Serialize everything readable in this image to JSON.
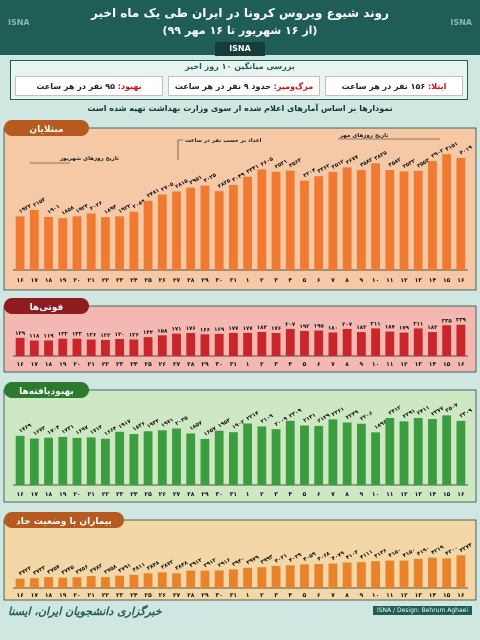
{
  "header": {
    "title": "روند شیوع ویروس کرونا در ایران طی یک ماه اخیر",
    "subtitle": "(از ۱۶ شهریور تا ۱۶ مهر ۹۹)",
    "agency": "ISNA",
    "logo_left": "ISNA",
    "logo_right": "ISNA"
  },
  "avg_box": {
    "title": "بررسی میانگین ۱۰ روز اخیر",
    "infected_label": "ابتلا:",
    "infected_value": "۱۵۶ نفر در هر ساعت",
    "deaths_label": "مرگ‌ومیر:",
    "deaths_value": "حدود ۹ نفر در هر ساعت",
    "recovered_label": "بهبود:",
    "recovered_value": "۹۵ نفر در هر ساعت"
  },
  "note": "نمودارها بر اساس آمارهای اعلام شده از سوی وزارت بهداشت تهیه شده است",
  "days": [
    "۱۶",
    "۱۷",
    "۱۸",
    "۱۹",
    "۲۰",
    "۲۱",
    "۲۲",
    "۲۳",
    "۲۴",
    "۲۵",
    "۲۶",
    "۲۷",
    "۲۸",
    "۲۹",
    "۳۰",
    "۳۱",
    "۱",
    "۲",
    "۳",
    "۴",
    "۵",
    "۶",
    "۷",
    "۸",
    "۹",
    "۱۰",
    "۱۱",
    "۱۲",
    "۱۳",
    "۱۴",
    "۱۵",
    "۱۶"
  ],
  "annotations": {
    "shahrivar_dates": "تاریخ روزهای شهریور",
    "mehr_dates": "تاریخ روزهای مهر",
    "per_hour": "اعداد بر حسب نفر در ساعت"
  },
  "footer": {
    "left": "خبرگزاری دانشجویان ایران، ایسنا",
    "right": "ISNA / Design: Behrum Aghaei"
  },
  "chart_data": [
    {
      "type": "bar",
      "title": "مبتلایان",
      "color": "#f07a32",
      "bg": "#f6c9a6",
      "values": [
        1922,
        2152,
        1901,
        1858,
        1924,
        2026,
        1894,
        1922,
        2089,
        2481,
        2705,
        2815,
        2951,
        3025,
        2825,
        3049,
        3341,
        3605,
        3521,
        3563,
        3204,
        3362,
        3512,
        3677,
        3582,
        3825,
        3582,
        3532,
        3553,
        3902,
        4151,
        4019
      ],
      "labels": [
        "۱۹۲۲",
        "۲۱۵۲",
        "۱۹۰۱",
        "۱۸۵۸",
        "۱۹۲۴",
        "۲۰۲۶",
        "۱۸۹۴",
        "۱۹۲۲",
        "۲۰۸۹",
        "۲۴۸۱",
        "۲۷۰۵",
        "۲۸۱۵",
        "۲۹۵۱",
        "۳۰۲۵",
        "۲۸۲۵",
        "۳۰۴۹",
        "۳۳۴۱",
        "۳۶۰۵",
        "۳۵۲۱",
        "۳۵۶۳",
        "۳۲۰۴",
        "۳۳۶۲",
        "۳۵۱۲",
        "۳۶۷۷",
        "۳۵۸۲",
        "۳۸۲۵",
        "۳۵۸۲",
        "۳۵۳۲",
        "۳۵۵۳",
        "۳۹۰۲",
        "۴۱۵۱",
        "۴۰۱۹"
      ],
      "ylim": [
        0,
        4300
      ]
    },
    {
      "type": "bar",
      "title": "فوتی‌ها",
      "color": "#c9252b",
      "bg": "#f2b8b1",
      "values": [
        139,
        118,
        119,
        132,
        132,
        126,
        123,
        130,
        126,
        144,
        158,
        171,
        176,
        166,
        169,
        177,
        177,
        184,
        176,
        207,
        192,
        195,
        180,
        207,
        183,
        211,
        187,
        179,
        211,
        183,
        235,
        239
      ],
      "labels": [
        "۱۳۹",
        "۱۱۸",
        "۱۱۹",
        "۱۳۲",
        "۱۳۲",
        "۱۲۶",
        "۱۲۳",
        "۱۳۰",
        "۱۲۶",
        "۱۴۴",
        "۱۵۸",
        "۱۷۱",
        "۱۷۶",
        "۱۶۶",
        "۱۶۹",
        "۱۷۷",
        "۱۷۷",
        "۱۸۴",
        "۱۷۶",
        "۲۰۷",
        "۱۹۲",
        "۱۹۵",
        "۱۸۰",
        "۲۰۷",
        "۱۸۳",
        "۲۱۱",
        "۱۸۷",
        "۱۷۹",
        "۲۱۱",
        "۱۸۳",
        "۲۳۵",
        "۲۳۹"
      ],
      "ylim": [
        0,
        260
      ]
    },
    {
      "type": "bar",
      "title": "بهبودیافته‌ها",
      "color": "#3b9d3e",
      "bg": "#cfe8c4",
      "values": [
        1769,
        1673,
        1704,
        1731,
        1697,
        1714,
        1664,
        1917,
        1836,
        1934,
        1971,
        2035,
        1857,
        1657,
        1953,
        1902,
        2214,
        2109,
        2009,
        2309,
        2141,
        2129,
        2361,
        2249,
        2206,
        1896,
        2412,
        2291,
        2411,
        2377,
        2507,
        2309
      ],
      "labels": [
        "۱۷۶۹",
        "۱۶۷۳",
        "۱۷۰۴",
        "۱۷۳۱",
        "۱۶۹۷",
        "۱۷۱۴",
        "۱۶۶۴",
        "۱۹۱۷",
        "۱۸۳۶",
        "۱۹۳۴",
        "۱۹۷۱",
        "۲۰۳۵",
        "۱۸۵۷",
        "۱۶۵۷",
        "۱۹۵۳",
        "۱۹۰۲",
        "۲۲۱۴",
        "۲۱۰۹",
        "۲۰۰۹",
        "۲۳۰۹",
        "۲۱۴۱",
        "۲۱۲۹",
        "۲۳۶۱",
        "۲۲۴۹",
        "۲۲۰۶",
        "۱۸۹۶",
        "۲۴۱۲",
        "۲۲۹۱",
        "۲۴۱۱",
        "۲۳۷۷",
        "۲۵۰۷",
        "۲۳۰۹"
      ],
      "ylim": [
        0,
        2700
      ]
    },
    {
      "type": "bar",
      "title": "بیماران با وضعیت حاد",
      "color": "#e8832c",
      "bg": "#f3d7a6",
      "values": [
        3722,
        3733,
        3757,
        3745,
        3756,
        3782,
        3758,
        3791,
        3811,
        3848,
        3872,
        3848,
        3912,
        3912,
        3916,
        3940,
        3979,
        3993,
        4021,
        4039,
        4059,
        4068,
        4079,
        4103,
        4111,
        4136,
        4150,
        4150,
        4190,
        4219,
        4200,
        4274
      ],
      "labels": [
        "۳۷۲۲",
        "۳۷۳۳",
        "۳۷۵۷",
        "۳۷۴۵",
        "۳۷۵۶",
        "۳۷۸۲",
        "۳۷۵۸",
        "۳۷۹۱",
        "۳۸۱۱",
        "۳۸۴۸",
        "۳۸۷۲",
        "۳۸۴۸",
        "۳۹۱۲",
        "۳۹۱۲",
        "۳۹۱۶",
        "۳۹۴۰",
        "۳۹۷۹",
        "۳۹۹۳",
        "۴۰۲۱",
        "۴۰۳۹",
        "۴۰۵۹",
        "۴۰۶۸",
        "۴۰۷۹",
        "۴۱۰۳",
        "۴۱۱۱",
        "۴۱۳۶",
        "۴۱۵۰",
        "۴۱۵۰",
        "۴۱۹۰",
        "۴۲۱۹",
        "۴۲۰۰",
        "۴۲۷۴"
      ],
      "ylim": [
        3500,
        4400
      ]
    }
  ]
}
